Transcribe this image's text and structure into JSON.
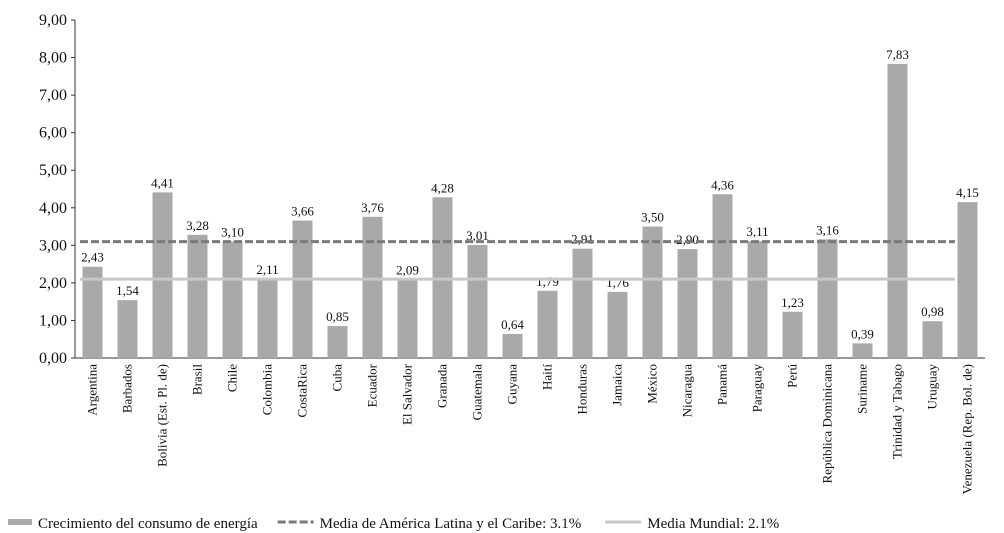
{
  "chart_data": {
    "type": "bar",
    "categories": [
      "Argentina",
      "Barbados",
      "Bolivia (Est. Pl. de)",
      "Brasil",
      "Chile",
      "Colombia",
      "CostaRica",
      "Cuba",
      "Ecuador",
      "El Salvador",
      "Granada",
      "Guatemala",
      "Guyana",
      "Haití",
      "Honduras",
      "Jamaica",
      "México",
      "Nicaragua",
      "Panamá",
      "Paraguay",
      "Perú",
      "República Dominicana",
      "Suriname",
      "Trinidad y Tabago",
      "Uruguay",
      "Venezuela (Rep. Bol. de)"
    ],
    "series": [
      {
        "name": "Crecimiento del consumo de energía",
        "color": "#a9a9a9",
        "values": [
          2.43,
          1.54,
          4.41,
          3.28,
          3.1,
          2.11,
          3.66,
          0.85,
          3.76,
          2.09,
          4.28,
          3.01,
          0.64,
          1.79,
          2.91,
          1.76,
          3.5,
          2.9,
          4.36,
          3.11,
          1.23,
          3.16,
          0.39,
          7.83,
          0.98,
          4.15
        ],
        "value_labels": [
          "2,43",
          "1,54",
          "4,41",
          "3,28",
          "3,10",
          "2,11",
          "3,66",
          "0,85",
          "3,76",
          "2,09",
          "4,28",
          "3,01",
          "0,64",
          "1,79",
          "2,91",
          "1,76",
          "3,50",
          "2,90",
          "4,36",
          "3,11",
          "1,23",
          "3,16",
          "0,39",
          "7,83",
          "0,98",
          "4,15"
        ]
      }
    ],
    "reference_lines": [
      {
        "name": "Media de América Latina y el Caribe: 3.1%",
        "value": 3.1,
        "color": "#7a7a7a",
        "dashed": true
      },
      {
        "name": "Media Mundial: 2.1%",
        "value": 2.1,
        "color": "#c8c8c8",
        "dashed": false
      }
    ],
    "ylim": [
      0,
      9
    ],
    "yticks": [
      {
        "value": 0,
        "label": "0,00"
      },
      {
        "value": 1,
        "label": "1,00"
      },
      {
        "value": 2,
        "label": "2,00"
      },
      {
        "value": 3,
        "label": "3,00"
      },
      {
        "value": 4,
        "label": "4,00"
      },
      {
        "value": 5,
        "label": "5,00"
      },
      {
        "value": 6,
        "label": "6,00"
      },
      {
        "value": 7,
        "label": "7,00"
      },
      {
        "value": 8,
        "label": "8,00"
      },
      {
        "value": 9,
        "label": "9,00"
      }
    ],
    "grid": false
  }
}
